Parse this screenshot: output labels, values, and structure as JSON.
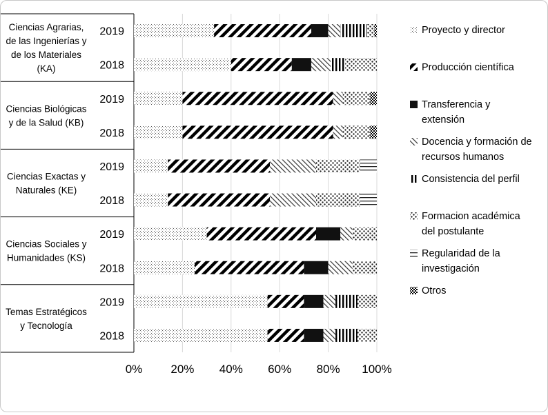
{
  "chart_data": {
    "type": "bar",
    "orientation": "horizontal",
    "stacked": "percent",
    "groups": [
      {
        "label_lines": [
          "Ciencias Agrarias,",
          "de las Ingenierías y",
          "de los Materiales",
          "(KA)"
        ],
        "years": [
          "2019",
          "2018"
        ]
      },
      {
        "label_lines": [
          "Ciencias Biológicas",
          "y de la Salud (KB)"
        ],
        "years": [
          "2019",
          "2018"
        ]
      },
      {
        "label_lines": [
          "Ciencias Exactas y",
          "Naturales (KE)"
        ],
        "years": [
          "2019",
          "2018"
        ]
      },
      {
        "label_lines": [
          "Ciencias Sociales y",
          "Humanidades (KS)"
        ],
        "years": [
          "2019",
          "2018"
        ]
      },
      {
        "label_lines": [
          "Temas Estratégicos",
          "y Tecnología"
        ],
        "years": [
          "2019",
          "2018"
        ]
      }
    ],
    "series": [
      {
        "name_lines": [
          "Proyecto y director"
        ],
        "pattern": "dots-fine",
        "values": [
          33,
          40,
          20,
          20,
          14,
          14,
          30,
          25,
          55,
          55
        ]
      },
      {
        "name_lines": [
          "Producción científica"
        ],
        "pattern": "diag-thick",
        "values": [
          40,
          25,
          62,
          62,
          42,
          42,
          45,
          45,
          15,
          15
        ]
      },
      {
        "name_lines": [
          "Transferencia y",
          "extensión"
        ],
        "pattern": "solid",
        "values": [
          7,
          8,
          0,
          0,
          0,
          0,
          10,
          10,
          8,
          8
        ]
      },
      {
        "name_lines": [
          "Docencia y formación de",
          "recursos humanos"
        ],
        "pattern": "diag-fine",
        "values": [
          5,
          8,
          4,
          4,
          19,
          19,
          5,
          10,
          5,
          5
        ]
      },
      {
        "name_lines": [
          "Consistencia del perfil"
        ],
        "pattern": "vertical",
        "values": [
          11,
          6,
          0,
          0,
          0,
          0,
          0,
          0,
          9,
          9
        ]
      },
      {
        "name_lines": [
          "Formacion académica",
          "del postulante"
        ],
        "pattern": "dots-coarse",
        "values": [
          3,
          13,
          11,
          11,
          18,
          18,
          10,
          10,
          8,
          8
        ]
      },
      {
        "name_lines": [
          "Regularidad de la",
          "investigación"
        ],
        "pattern": "horizontal",
        "values": [
          0,
          0,
          0,
          0,
          7,
          7,
          0,
          0,
          0,
          0
        ]
      },
      {
        "name_lines": [
          "Otros"
        ],
        "pattern": "checker",
        "values": [
          1,
          0,
          3,
          3,
          0,
          0,
          0,
          0,
          0,
          0
        ]
      }
    ],
    "x_ticks": [
      "0%",
      "20%",
      "40%",
      "60%",
      "80%",
      "100%"
    ],
    "xlim": [
      0,
      100
    ],
    "grid": "vertical",
    "legend_position": "right"
  }
}
